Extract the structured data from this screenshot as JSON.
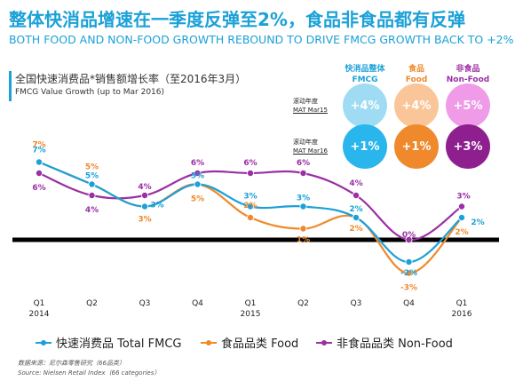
{
  "main_title": "整体快消品增速在一季度反弹至2%，食品非食品都有反弹",
  "sub_title": "BOTH FOOD AND NON-FOOD GROWTH REBOUND TO DRIVE FMCG GROWTH BACK TO +2%",
  "chart_title": "全国快速消费品*销售额增长率（至2016年3月）",
  "chart_subtitle": "FMCG Value Growth (up to Mar 2016)",
  "summary": {
    "headers": [
      {
        "cn": "快消品整体",
        "en": "FMCG",
        "color": "#1ba1d8"
      },
      {
        "cn": "食品",
        "en": "Food",
        "color": "#f0892c"
      },
      {
        "cn": "非食品",
        "en": "Non-Food",
        "color": "#9b2fa4"
      }
    ],
    "rows": [
      {
        "cn": "滚动年度",
        "en": "MAT Mar15",
        "values": [
          "+4%",
          "+4%",
          "+5%"
        ],
        "colors": [
          "#9fdcf4",
          "#fbc59a",
          "#ef9be8"
        ]
      },
      {
        "cn": "滚动年度",
        "en": "MAT Mar16",
        "values": [
          "+1%",
          "+1%",
          "+3%"
        ],
        "colors": [
          "#29b6ec",
          "#f0892c",
          "#8f1f8f"
        ]
      }
    ]
  },
  "chart_data": {
    "type": "line",
    "x": [
      "Q1 2014",
      "Q2",
      "Q3",
      "Q4",
      "Q1 2015",
      "Q2",
      "Q3",
      "Q4",
      "Q1 2016"
    ],
    "x_ticks": [
      {
        "q": "Q1",
        "y": "2014"
      },
      {
        "q": "Q2",
        "y": ""
      },
      {
        "q": "Q3",
        "y": ""
      },
      {
        "q": "Q4",
        "y": ""
      },
      {
        "q": "Q1",
        "y": "2015"
      },
      {
        "q": "Q2",
        "y": ""
      },
      {
        "q": "Q3",
        "y": ""
      },
      {
        "q": "Q4",
        "y": ""
      },
      {
        "q": "Q1",
        "y": "2016"
      }
    ],
    "series": [
      {
        "name": "快速消费品 Total FMCG",
        "color": "#1ba1d8",
        "values": [
          7,
          5,
          3,
          5,
          3,
          3,
          2,
          -2,
          2
        ],
        "labels": [
          "7%",
          "5%",
          "3%",
          "5%",
          "3%",
          "3%",
          "2%",
          "-2%",
          "2%"
        ]
      },
      {
        "name": "食品品类 Food",
        "color": "#f0892c",
        "values": [
          7,
          5,
          3,
          5,
          2,
          1,
          2,
          -3,
          2
        ],
        "labels": [
          "7%",
          "5%",
          "3%",
          "5%",
          "2%",
          "1%",
          "2%",
          "-3%",
          "2%"
        ]
      },
      {
        "name": "非食品品类 Non-Food",
        "color": "#9b2fa4",
        "values": [
          6,
          4,
          4,
          6,
          6,
          6,
          4,
          0,
          3
        ],
        "labels": [
          "6%",
          "4%",
          "4%",
          "6%",
          "6%",
          "6%",
          "4%",
          "0%",
          "3%"
        ]
      }
    ],
    "ylim": [
      -4,
      8
    ],
    "zero_line": true
  },
  "source": {
    "line1": "数据来源：尼尔森零售研究（66品类）",
    "line2": "Source: Nielsen Retail Index（66 categories）"
  }
}
